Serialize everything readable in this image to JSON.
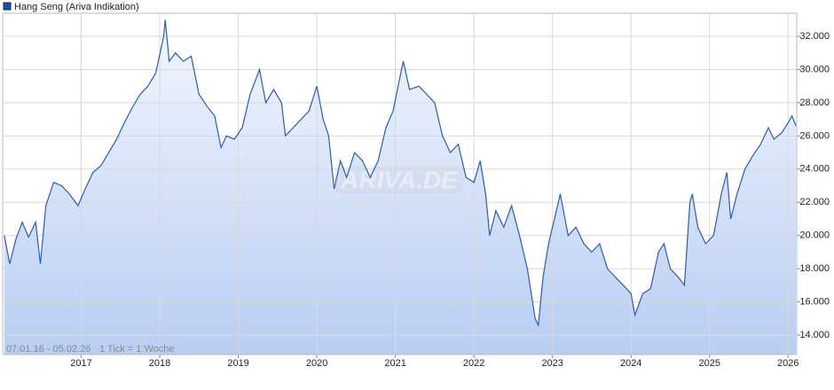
{
  "chart_data": {
    "type": "line",
    "date_range": "07.01.16 - 05.02.26",
    "tick_note": "1 Tick = 1 Woche",
    "watermark": "ARIVA.DE",
    "grid": true,
    "xlim": [
      2016,
      2026.11
    ],
    "xticks": [
      2017,
      2018,
      2019,
      2020,
      2021,
      2022,
      2023,
      2024,
      2025,
      2026
    ],
    "ylim": [
      12825,
      33390
    ],
    "yticks": [
      {
        "value": 14000,
        "label": "14.000"
      },
      {
        "value": 16000,
        "label": "16.000"
      },
      {
        "value": 18000,
        "label": "18.000"
      },
      {
        "value": 20000,
        "label": "20.000"
      },
      {
        "value": 22000,
        "label": "22.000"
      },
      {
        "value": 24000,
        "label": "24.000"
      },
      {
        "value": 26000,
        "label": "26.000"
      },
      {
        "value": 28000,
        "label": "28.000"
      },
      {
        "value": 30000,
        "label": "30.000"
      },
      {
        "value": 32000,
        "label": "32.000"
      }
    ],
    "x": [
      2016.02,
      2016.09,
      2016.17,
      2016.25,
      2016.33,
      2016.42,
      2016.48,
      2016.55,
      2016.65,
      2016.75,
      2016.85,
      2016.96,
      2017.05,
      2017.15,
      2017.25,
      2017.35,
      2017.45,
      2017.55,
      2017.65,
      2017.75,
      2017.85,
      2017.95,
      2018.05,
      2018.07,
      2018.12,
      2018.2,
      2018.3,
      2018.4,
      2018.5,
      2018.6,
      2018.7,
      2018.78,
      2018.85,
      2018.95,
      2019.05,
      2019.15,
      2019.27,
      2019.35,
      2019.45,
      2019.55,
      2019.6,
      2019.7,
      2019.8,
      2019.9,
      2020.0,
      2020.08,
      2020.15,
      2020.22,
      2020.3,
      2020.38,
      2020.48,
      2020.58,
      2020.68,
      2020.78,
      2020.88,
      2020.97,
      2021.1,
      2021.18,
      2021.3,
      2021.4,
      2021.5,
      2021.6,
      2021.7,
      2021.8,
      2021.9,
      2022.0,
      2022.08,
      2022.15,
      2022.2,
      2022.28,
      2022.38,
      2022.48,
      2022.58,
      2022.68,
      2022.78,
      2022.82,
      2022.88,
      2022.95,
      2023.05,
      2023.1,
      2023.2,
      2023.3,
      2023.4,
      2023.5,
      2023.6,
      2023.7,
      2023.8,
      2023.9,
      2024.0,
      2024.05,
      2024.15,
      2024.25,
      2024.35,
      2024.42,
      2024.5,
      2024.6,
      2024.68,
      2024.75,
      2024.78,
      2024.85,
      2024.95,
      2025.05,
      2025.15,
      2025.22,
      2025.27,
      2025.35,
      2025.45,
      2025.55,
      2025.65,
      2025.75,
      2025.82,
      2025.92,
      2026.0,
      2026.05,
      2026.1
    ],
    "series": [
      {
        "name": "Hang Seng (Ariva Indikation)",
        "color": "#2a5db0",
        "values": [
          20000,
          18300,
          19800,
          20800,
          19900,
          20800,
          18300,
          21800,
          23200,
          23000,
          22500,
          21800,
          22800,
          23800,
          24200,
          25000,
          25800,
          26800,
          27700,
          28500,
          29000,
          29800,
          32000,
          33000,
          30500,
          31000,
          30500,
          30800,
          28500,
          27800,
          27200,
          25300,
          26000,
          25800,
          26500,
          28500,
          30000,
          28000,
          28800,
          28000,
          26000,
          26500,
          27000,
          27500,
          29000,
          27000,
          26000,
          22800,
          24500,
          23500,
          25000,
          24500,
          23500,
          24500,
          26500,
          27500,
          30500,
          28800,
          29000,
          28500,
          28000,
          26000,
          25000,
          25500,
          23500,
          23200,
          24500,
          22500,
          20000,
          21500,
          20500,
          21800,
          20000,
          18000,
          15000,
          14600,
          17500,
          19500,
          21500,
          22500,
          20000,
          20500,
          19500,
          19000,
          19500,
          18000,
          17500,
          17000,
          16500,
          15200,
          16500,
          16800,
          19000,
          19500,
          18000,
          17500,
          17000,
          22000,
          22500,
          20500,
          19500,
          20000,
          22500,
          23800,
          21000,
          22500,
          24000,
          24800,
          25500,
          26500,
          25800,
          26200,
          26800,
          27200,
          26600
        ]
      }
    ]
  }
}
